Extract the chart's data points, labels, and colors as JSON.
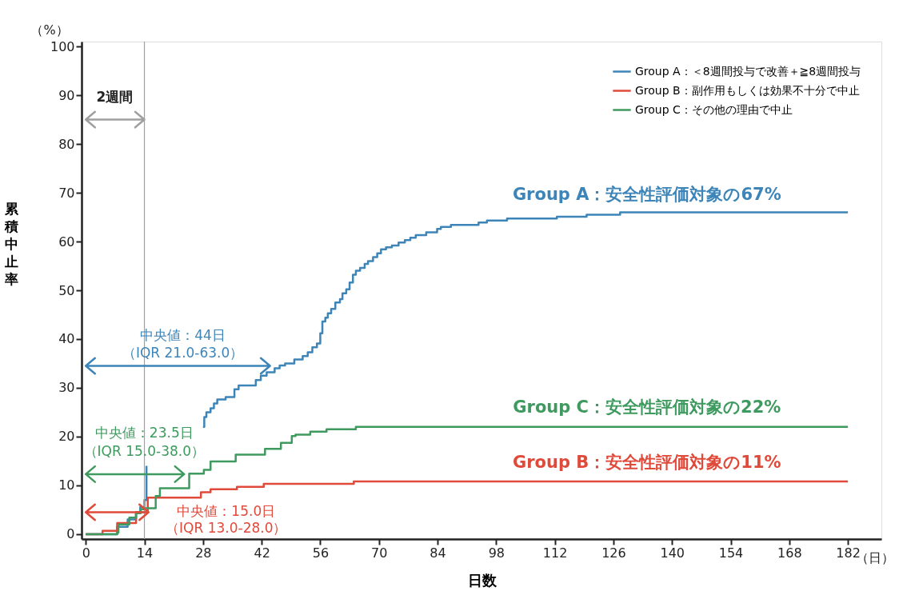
{
  "chart_data": {
    "type": "step",
    "xlabel": "日数",
    "ylabel": "累積中止率",
    "xlim": [
      -1,
      190
    ],
    "xticks": [
      0,
      14,
      28,
      42,
      56,
      70,
      84,
      98,
      112,
      126,
      140,
      154,
      168,
      182
    ],
    "ylim": [
      -1,
      101
    ],
    "yticks": [
      0,
      10,
      20,
      30,
      40,
      50,
      60,
      70,
      80,
      90,
      100
    ],
    "grid": false,
    "legend": "top right",
    "series": [
      {
        "name": "Group A：＜8週間投与で改善＋≧8週間投与",
        "color": "#3d85b8",
        "x": [
          0,
          7.5,
          10,
          12,
          13,
          14,
          14.5,
          20,
          28,
          28.3,
          28.8,
          29.8,
          30.6,
          31.4,
          33.4,
          35.5,
          36.5,
          40.6,
          41.8,
          43.2,
          45.1,
          46.3,
          47.6,
          49.8,
          51.8,
          53,
          54.1,
          55.2,
          56,
          56.5,
          57.2,
          57.8,
          58.6,
          59.6,
          60.7,
          61.3,
          62.2,
          63,
          63.8,
          64.5,
          65.5,
          66.6,
          67.4,
          68.6,
          69.6,
          70.5,
          71.7,
          73.1,
          74.7,
          76.2,
          77.5,
          78.8,
          81.3,
          83.9,
          84.8,
          87.2,
          93.8,
          95.8,
          100.6,
          112.5,
          119.6,
          127.6,
          182
        ],
        "values": [
          0,
          1.5,
          3,
          4.5,
          5.5,
          7,
          14,
          null,
          22,
          24,
          25,
          25.8,
          26.8,
          27.6,
          28.1,
          29.7,
          30.5,
          31.6,
          32.5,
          33.2,
          34,
          34.6,
          35,
          35.8,
          36.5,
          37.3,
          38.3,
          39.1,
          41.2,
          43.6,
          44.4,
          45.3,
          46.2,
          47.5,
          48.2,
          49.4,
          50.2,
          51.6,
          53.2,
          54,
          54.6,
          55.4,
          56,
          56.8,
          57.6,
          58.4,
          58.8,
          59.2,
          59.8,
          60.3,
          60.8,
          61.3,
          61.9,
          62.6,
          63,
          63.4,
          63.9,
          64.3,
          64.7,
          65.1,
          65.5,
          66,
          66
        ]
      },
      {
        "name": "Group B：副作用もしくは効果不十分で中止",
        "color": "#e04a3a",
        "x": [
          0,
          4,
          7.5,
          12,
          14.8,
          27.5,
          29.8,
          36.1,
          42.5,
          64,
          182
        ],
        "values": [
          0,
          0.7,
          2.3,
          4.5,
          7.5,
          8.6,
          9.2,
          9.7,
          10.3,
          10.8,
          10.8
        ]
      },
      {
        "name": "Group C：その他の理由で中止",
        "color": "#3f9a5f",
        "x": [
          0,
          7.5,
          7.8,
          10.4,
          12,
          13.1,
          14.2,
          16.7,
          17.7,
          24.7,
          28.2,
          29.8,
          35.8,
          42.8,
          46.6,
          49.2,
          50.1,
          53.6,
          57.5,
          64.5,
          182
        ],
        "values": [
          0,
          0.3,
          2,
          3.4,
          4.3,
          5.1,
          5.3,
          7.8,
          9.4,
          12.4,
          13.2,
          14.9,
          16.3,
          17.5,
          18.7,
          20.1,
          20.4,
          21,
          21.5,
          22,
          22
        ]
      }
    ],
    "ref_lines": [
      {
        "axis": "x",
        "value": 14,
        "color": "#a0a0a0"
      }
    ],
    "annotations": [
      {
        "text": "2週間",
        "x": 14,
        "y": 85
      },
      "中央値：44日",
      {
        "text": "（IQR 21.0-63.0）",
        "x": 44,
        "y": 34.5
      },
      "中央値：23.5日",
      {
        "text": "（IQR 15.0-38.0）",
        "x": 23.5,
        "y": 12.3
      },
      "中央値：15.0日",
      {
        "text": "（IQR 13.0-28.0）",
        "x": 15,
        "y": 4.5
      },
      {
        "text": "Group A：安全性評価対象の67%",
        "x": 134,
        "y": 66
      },
      {
        "text": "Group C：安全性評価対象の22%",
        "x": 134,
        "y": 22
      },
      {
        "text": "Group B：安全性評価対象の11%",
        "x": 134,
        "y": 10.8
      },
      "（%）",
      "（日）"
    ]
  }
}
